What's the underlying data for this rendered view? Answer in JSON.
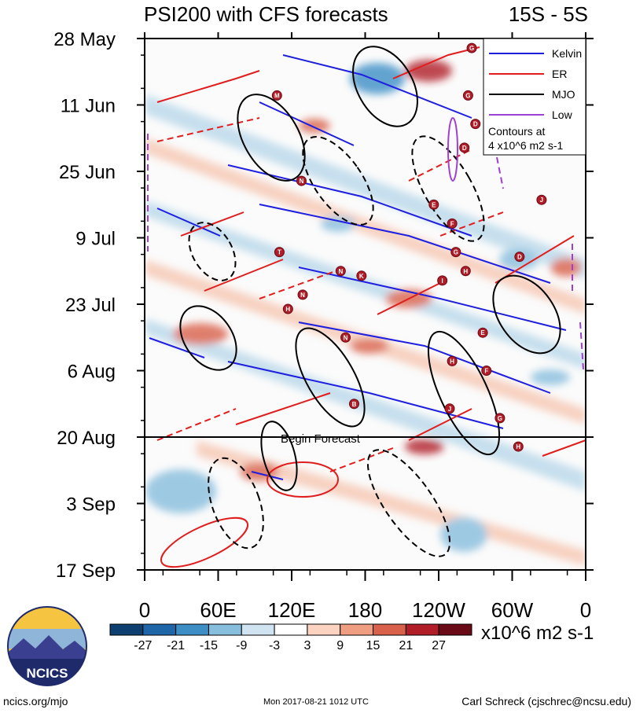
{
  "chart_data": {
    "type": "heatmap",
    "title": "PSI200 with CFS forecasts",
    "region": "15S - 5S",
    "y_ticks": [
      "28 May",
      "11 Jun",
      "25 Jun",
      "9 Jul",
      "23 Jul",
      "6 Aug",
      "20 Aug",
      "3 Sep",
      "17 Sep"
    ],
    "x_ticks": [
      "0",
      "60E",
      "120E",
      "180",
      "120W",
      "60W",
      "0"
    ],
    "forecast_label": "Begin Forecast",
    "forecast_date": "20 Aug",
    "legend": {
      "entries": [
        {
          "label": "Kelvin",
          "color": "#1f1fe0"
        },
        {
          "label": "ER",
          "color": "#e01e1e"
        },
        {
          "label": "MJO",
          "color": "#000000"
        },
        {
          "label": "Low",
          "color": "#a040d0"
        }
      ],
      "note_line1": "Contours at",
      "note_line2": "4 x10^6 m2 s-1"
    },
    "colorbar": {
      "ticks": [
        "-27",
        "-21",
        "-15",
        "-9",
        "-3",
        "3",
        "9",
        "15",
        "21",
        "27"
      ],
      "colors": [
        "#0d3f70",
        "#1f66a8",
        "#3e8ec6",
        "#87bddd",
        "#cfe3f0",
        "#ffffff",
        "#fbd3c0",
        "#f09e82",
        "#d9604a",
        "#b01d27",
        "#6a0a16"
      ],
      "units": "x10^6 m2 s-1"
    }
  },
  "logo_text": "NCICS",
  "footer": {
    "site": "ncics.org/mjo",
    "timestamp": "Mon 2017-08-21 1012 UTC",
    "author": "Carl Schreck (cjschrec@ncsu.edu)"
  },
  "storm_markers": [
    {
      "label": "M",
      "lon": 108,
      "day": 12
    },
    {
      "label": "N",
      "lon": 128,
      "day": 30
    },
    {
      "label": "T",
      "lon": 110,
      "day": 45
    },
    {
      "label": "N",
      "lon": 160,
      "day": 49
    },
    {
      "label": "K",
      "lon": 177,
      "day": 50
    },
    {
      "label": "N",
      "lon": 129,
      "day": 54
    },
    {
      "label": "H",
      "lon": 117,
      "day": 57
    },
    {
      "label": "N",
      "lon": 164,
      "day": 63
    },
    {
      "label": "B",
      "lon": 171,
      "day": 77
    },
    {
      "label": "E",
      "lon": 236,
      "day": 35
    },
    {
      "label": "F",
      "lon": 251,
      "day": 39
    },
    {
      "label": "G",
      "lon": 254,
      "day": 45
    },
    {
      "label": "H",
      "lon": 262,
      "day": 49
    },
    {
      "label": "I",
      "lon": 243,
      "day": 51
    },
    {
      "label": "E",
      "lon": 276,
      "day": 62
    },
    {
      "label": "H",
      "lon": 251,
      "day": 68
    },
    {
      "label": "F",
      "lon": 279,
      "day": 70
    },
    {
      "label": "J",
      "lon": 249,
      "day": 78
    },
    {
      "label": "G",
      "lon": 290,
      "day": 80
    },
    {
      "label": "H",
      "lon": 305,
      "day": 86
    },
    {
      "label": "D",
      "lon": 306,
      "day": 46
    },
    {
      "label": "J",
      "lon": 324,
      "day": 34
    },
    {
      "label": "G",
      "lon": 267,
      "day": 2
    },
    {
      "label": "G",
      "lon": 264,
      "day": 12
    },
    {
      "label": "D",
      "lon": 261,
      "day": 23
    },
    {
      "label": "D",
      "lon": 270,
      "day": 18
    }
  ]
}
